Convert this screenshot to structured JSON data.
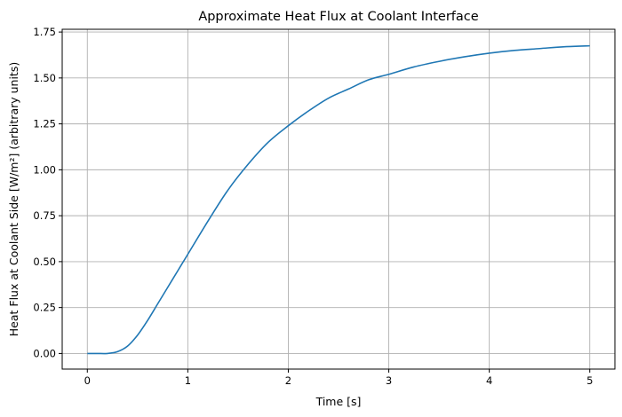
{
  "chart_data": {
    "type": "line",
    "title": "Approximate Heat Flux at Coolant Interface",
    "xlabel": "Time [s]",
    "ylabel": "Heat Flux at Coolant Side [W/m²] (arbitrary units)",
    "xlim": [
      -0.25,
      5.25
    ],
    "ylim": [
      -0.085,
      1.765
    ],
    "xticks": [
      0,
      1,
      2,
      3,
      4,
      5
    ],
    "yticks": [
      0.0,
      0.25,
      0.5,
      0.75,
      1.0,
      1.25,
      1.5,
      1.75
    ],
    "xtick_labels": [
      "0",
      "1",
      "2",
      "3",
      "4",
      "5"
    ],
    "ytick_labels": [
      "0.00",
      "0.25",
      "0.50",
      "0.75",
      "1.00",
      "1.25",
      "1.50",
      "1.75"
    ],
    "grid": true,
    "line_color": "#1f77b4",
    "series": [
      {
        "x": [
          0,
          0.1,
          0.2,
          0.3,
          0.4,
          0.5,
          0.6,
          0.7,
          0.8,
          0.9,
          1.0,
          1.2,
          1.4,
          1.6,
          1.8,
          2.0,
          2.2,
          2.4,
          2.6,
          2.8,
          3.0,
          3.25,
          3.5,
          3.75,
          4.0,
          4.25,
          4.5,
          4.75,
          5.0
        ],
        "values": [
          0.0,
          0.0,
          0.0,
          0.01,
          0.04,
          0.1,
          0.18,
          0.27,
          0.36,
          0.45,
          0.54,
          0.72,
          0.89,
          1.03,
          1.15,
          1.24,
          1.32,
          1.39,
          1.44,
          1.49,
          1.52,
          1.56,
          1.59,
          1.615,
          1.635,
          1.65,
          1.66,
          1.67,
          1.675
        ]
      }
    ]
  }
}
